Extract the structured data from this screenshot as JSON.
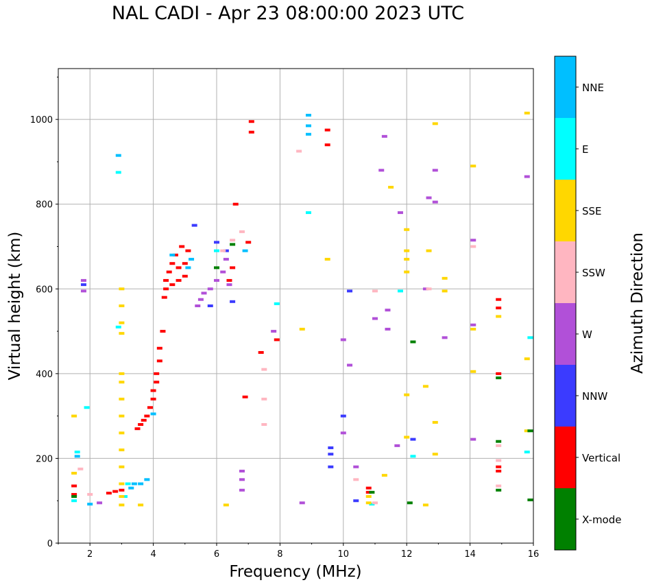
{
  "chart_data": {
    "type": "scatter",
    "title": "NAL CADI - Apr 23 08:00:00 2023 UTC",
    "xlabel": "Frequency (MHz)",
    "ylabel": "Virtual height (km)",
    "xlim": [
      1,
      16
    ],
    "ylim": [
      0,
      1120
    ],
    "xticks": [
      "2",
      "4",
      "6",
      "8",
      "10",
      "12",
      "14",
      "16"
    ],
    "yticks": [
      "0",
      "200",
      "400",
      "600",
      "800",
      "1000"
    ],
    "grid": true,
    "colorbar": {
      "label": "Azimuth Direction",
      "categories": [
        {
          "name": "X-mode",
          "color": "#008000"
        },
        {
          "name": "Vertical",
          "color": "#ff0000"
        },
        {
          "name": "NNW",
          "color": "#3b3bff"
        },
        {
          "name": "W",
          "color": "#b150d8"
        },
        {
          "name": "SSW",
          "color": "#ffb6c1"
        },
        {
          "name": "SSE",
          "color": "#ffd700"
        },
        {
          "name": "E",
          "color": "#00ffff"
        },
        {
          "name": "NNE",
          "color": "#00bfff"
        }
      ]
    },
    "series": [
      {
        "name": "Vertical",
        "points": [
          [
            1.5,
            135
          ],
          [
            1.5,
            115
          ],
          [
            2.6,
            118
          ],
          [
            2.8,
            122
          ],
          [
            3.0,
            125
          ],
          [
            3.5,
            270
          ],
          [
            3.6,
            280
          ],
          [
            3.7,
            290
          ],
          [
            3.8,
            300
          ],
          [
            3.9,
            320
          ],
          [
            4.0,
            340
          ],
          [
            4.0,
            360
          ],
          [
            4.1,
            380
          ],
          [
            4.1,
            400
          ],
          [
            4.2,
            430
          ],
          [
            4.2,
            460
          ],
          [
            4.3,
            500
          ],
          [
            4.35,
            580
          ],
          [
            4.4,
            600
          ],
          [
            4.4,
            620
          ],
          [
            4.5,
            640
          ],
          [
            4.6,
            660
          ],
          [
            4.6,
            610
          ],
          [
            4.7,
            680
          ],
          [
            4.8,
            650
          ],
          [
            4.8,
            620
          ],
          [
            4.9,
            700
          ],
          [
            5.0,
            660
          ],
          [
            5.0,
            630
          ],
          [
            5.1,
            690
          ],
          [
            6.4,
            620
          ],
          [
            6.5,
            650
          ],
          [
            6.6,
            800
          ],
          [
            7.0,
            710
          ],
          [
            7.1,
            970
          ],
          [
            7.1,
            995
          ],
          [
            7.4,
            450
          ],
          [
            6.9,
            345
          ],
          [
            7.9,
            480
          ],
          [
            9.5,
            975
          ],
          [
            9.5,
            940
          ],
          [
            10.8,
            130
          ],
          [
            10.8,
            120
          ],
          [
            14.9,
            575
          ],
          [
            14.9,
            555
          ],
          [
            14.9,
            400
          ],
          [
            14.9,
            180
          ],
          [
            14.9,
            170
          ]
        ]
      },
      {
        "name": "NNE",
        "points": [
          [
            1.6,
            205
          ],
          [
            2.0,
            92
          ],
          [
            2.9,
            915
          ],
          [
            3.3,
            130
          ],
          [
            3.4,
            140
          ],
          [
            3.6,
            140
          ],
          [
            3.8,
            150
          ],
          [
            4.0,
            305
          ],
          [
            4.6,
            680
          ],
          [
            5.1,
            650
          ],
          [
            5.2,
            670
          ],
          [
            6.9,
            690
          ],
          [
            8.9,
            1010
          ],
          [
            8.9,
            985
          ],
          [
            8.9,
            965
          ]
        ]
      },
      {
        "name": "E",
        "points": [
          [
            1.5,
            100
          ],
          [
            1.6,
            215
          ],
          [
            1.9,
            320
          ],
          [
            2.9,
            510
          ],
          [
            2.9,
            875
          ],
          [
            3.1,
            110
          ],
          [
            3.2,
            140
          ],
          [
            6.0,
            690
          ],
          [
            8.9,
            780
          ],
          [
            7.9,
            565
          ],
          [
            10.9,
            92
          ],
          [
            11.8,
            595
          ],
          [
            12.2,
            205
          ],
          [
            15.9,
            485
          ],
          [
            15.8,
            215
          ]
        ]
      },
      {
        "name": "SSE",
        "points": [
          [
            1.5,
            165
          ],
          [
            1.5,
            300
          ],
          [
            3.0,
            600
          ],
          [
            3.0,
            560
          ],
          [
            3.0,
            520
          ],
          [
            3.0,
            495
          ],
          [
            3.0,
            400
          ],
          [
            3.0,
            380
          ],
          [
            3.0,
            340
          ],
          [
            3.0,
            300
          ],
          [
            3.0,
            260
          ],
          [
            3.0,
            220
          ],
          [
            3.0,
            180
          ],
          [
            3.0,
            140
          ],
          [
            3.0,
            110
          ],
          [
            3.0,
            90
          ],
          [
            3.6,
            90
          ],
          [
            6.3,
            90
          ],
          [
            8.7,
            505
          ],
          [
            9.5,
            670
          ],
          [
            10.8,
            110
          ],
          [
            10.8,
            95
          ],
          [
            11.3,
            160
          ],
          [
            11.5,
            840
          ],
          [
            12.0,
            740
          ],
          [
            12.0,
            690
          ],
          [
            12.0,
            670
          ],
          [
            12.0,
            640
          ],
          [
            12.0,
            350
          ],
          [
            12.0,
            250
          ],
          [
            12.6,
            370
          ],
          [
            12.6,
            90
          ],
          [
            12.7,
            690
          ],
          [
            12.9,
            285
          ],
          [
            12.9,
            210
          ],
          [
            12.9,
            990
          ],
          [
            13.2,
            625
          ],
          [
            13.2,
            595
          ],
          [
            14.1,
            890
          ],
          [
            14.1,
            405
          ],
          [
            14.1,
            505
          ],
          [
            14.9,
            535
          ],
          [
            15.8,
            1015
          ],
          [
            15.8,
            435
          ],
          [
            15.8,
            265
          ]
        ]
      },
      {
        "name": "W",
        "points": [
          [
            1.8,
            595
          ],
          [
            1.8,
            620
          ],
          [
            2.3,
            95
          ],
          [
            5.4,
            560
          ],
          [
            5.5,
            575
          ],
          [
            5.6,
            590
          ],
          [
            5.8,
            600
          ],
          [
            6.0,
            620
          ],
          [
            6.2,
            640
          ],
          [
            6.3,
            670
          ],
          [
            6.4,
            610
          ],
          [
            6.8,
            170
          ],
          [
            6.8,
            150
          ],
          [
            6.8,
            125
          ],
          [
            7.8,
            500
          ],
          [
            8.7,
            95
          ],
          [
            10.0,
            480
          ],
          [
            10.0,
            260
          ],
          [
            10.2,
            420
          ],
          [
            10.4,
            180
          ],
          [
            11.0,
            530
          ],
          [
            11.2,
            880
          ],
          [
            11.3,
            960
          ],
          [
            11.4,
            550
          ],
          [
            11.4,
            505
          ],
          [
            11.7,
            230
          ],
          [
            11.8,
            780
          ],
          [
            12.6,
            600
          ],
          [
            12.7,
            815
          ],
          [
            12.9,
            880
          ],
          [
            12.9,
            805
          ],
          [
            13.2,
            485
          ],
          [
            14.1,
            715
          ],
          [
            14.1,
            515
          ],
          [
            14.1,
            245
          ],
          [
            15.8,
            865
          ]
        ]
      },
      {
        "name": "NNW",
        "points": [
          [
            1.8,
            610
          ],
          [
            5.3,
            750
          ],
          [
            5.8,
            560
          ],
          [
            6.0,
            710
          ],
          [
            6.3,
            690
          ],
          [
            6.5,
            570
          ],
          [
            9.6,
            225
          ],
          [
            9.6,
            210
          ],
          [
            9.6,
            180
          ],
          [
            10.0,
            300
          ],
          [
            10.2,
            595
          ],
          [
            10.4,
            100
          ],
          [
            12.2,
            245
          ]
        ]
      },
      {
        "name": "SSW",
        "points": [
          [
            1.7,
            175
          ],
          [
            2.0,
            115
          ],
          [
            6.2,
            690
          ],
          [
            6.5,
            715
          ],
          [
            6.8,
            735
          ],
          [
            7.5,
            410
          ],
          [
            7.5,
            280
          ],
          [
            7.5,
            340
          ],
          [
            8.6,
            925
          ],
          [
            10.4,
            150
          ],
          [
            11.0,
            95
          ],
          [
            11.0,
            595
          ],
          [
            12.7,
            600
          ],
          [
            14.1,
            700
          ],
          [
            14.9,
            195
          ],
          [
            14.9,
            230
          ],
          [
            14.9,
            135
          ]
        ]
      },
      {
        "name": "X-mode",
        "points": [
          [
            1.5,
            110
          ],
          [
            6.0,
            650
          ],
          [
            6.5,
            705
          ],
          [
            10.9,
            120
          ],
          [
            12.1,
            95
          ],
          [
            12.2,
            475
          ],
          [
            14.9,
            390
          ],
          [
            14.9,
            240
          ],
          [
            14.9,
            125
          ],
          [
            15.9,
            102
          ],
          [
            15.9,
            265
          ]
        ]
      }
    ]
  }
}
